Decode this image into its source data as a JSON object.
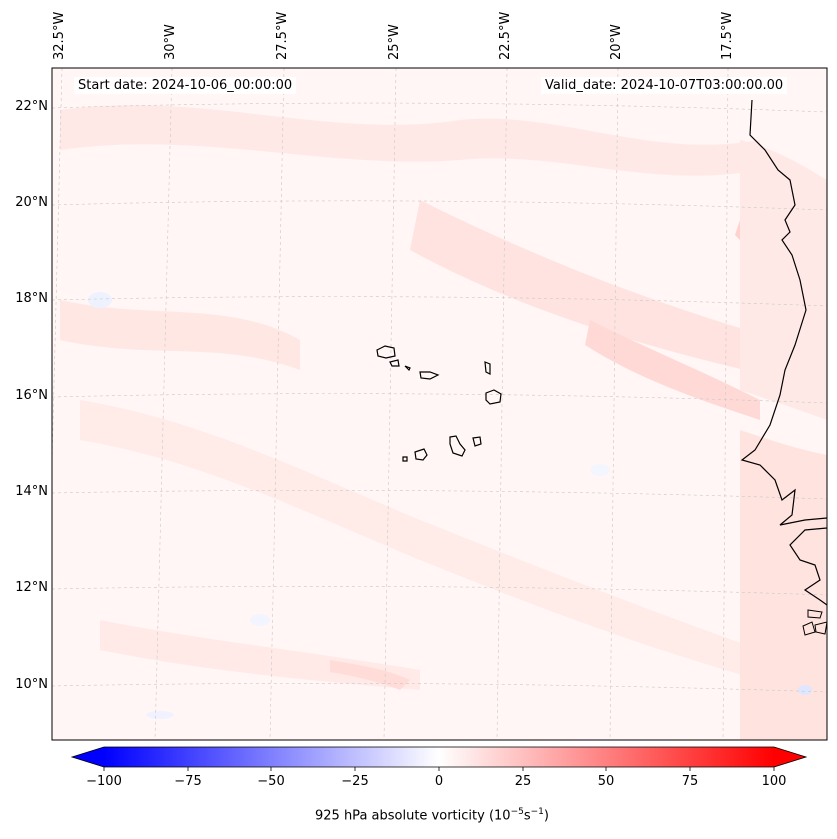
{
  "map": {
    "start_date_label": "Start date: 2024-10-06_00:00:00",
    "valid_date_label": "Valid_date: 2024-10-07T03:00:00.00",
    "lon_labels": [
      "32.5°W",
      "30°W",
      "27.5°W",
      "25°W",
      "22.5°W",
      "20°W",
      "17.5°W"
    ],
    "lat_labels": [
      "22°N",
      "20°N",
      "18°N",
      "16°N",
      "14°N",
      "12°N",
      "10°N"
    ],
    "features": [
      "cape-verde-islands",
      "west-africa-coastline"
    ]
  },
  "colorbar": {
    "label_prefix": "925 hPa absolute vorticity (10",
    "label_exp1": "−5",
    "label_mid": "s",
    "label_exp2": "−1",
    "label_suffix": ")",
    "ticks": [
      "−100",
      "−75",
      "−50",
      "−25",
      "0",
      "25",
      "50",
      "75",
      "100"
    ],
    "min": -100,
    "max": 100,
    "colors": {
      "neg": "#0000ff",
      "zero": "#ffffff",
      "pos": "#ff0000"
    }
  }
}
